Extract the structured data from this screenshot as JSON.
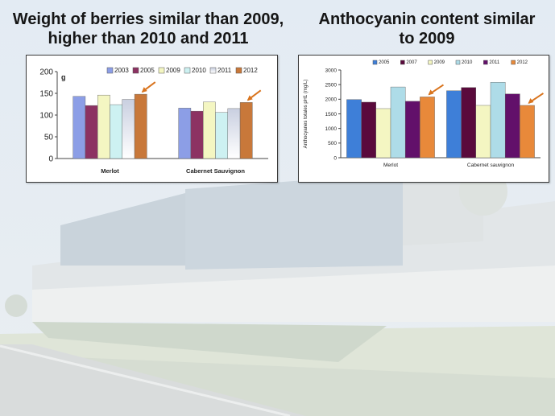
{
  "slide": {
    "left_title": [
      "Weight of berries similar than 2009,",
      "higher than 2010 and 2011"
    ],
    "right_title": [
      "Anthocyanin content similar",
      "to 2009"
    ]
  },
  "colors": {
    "2003": "#8c9ee6",
    "2005": "#8c3262",
    "2007": "#5a0a3c",
    "2009": "#f4f6c2",
    "2010": "#cdf1f2",
    "2011": "#62106a",
    "2012": "#c8783a",
    "2005_blue": "#3e7fd8",
    "2010_light": "#aedce8",
    "arrow": "#d9741e"
  },
  "chart_data": [
    {
      "type": "bar",
      "unit_label": "g",
      "categories": [
        "Merlot",
        "Cabernet Sauvignon"
      ],
      "series": [
        {
          "name": "2003",
          "values": [
            143,
            116
          ],
          "color": "#8c9ee6"
        },
        {
          "name": "2005",
          "values": [
            122,
            109
          ],
          "color": "#8c3262"
        },
        {
          "name": "2009",
          "values": [
            146,
            130
          ],
          "color": "#f4f6c2"
        },
        {
          "name": "2010",
          "values": [
            124,
            106
          ],
          "color": "#cdf1f2"
        },
        {
          "name": "2011",
          "values": [
            136,
            115
          ],
          "color": "#ffffff",
          "gradient": true
        },
        {
          "name": "2012",
          "values": [
            148,
            129
          ],
          "color": "#c8783a"
        }
      ],
      "ylim": [
        0,
        200
      ],
      "yticks": [
        0,
        50,
        100,
        150,
        200
      ],
      "grid": false,
      "legend": "top",
      "annotations": [
        "arrow pointing to Merlot 2012",
        "arrow pointing to Cabernet Sauvignon 2012"
      ]
    },
    {
      "type": "bar",
      "ylabel": "Anthocyanes totales pH1 (mg/L)",
      "categories": [
        "Merlot",
        "Cabernet sauvignon"
      ],
      "series": [
        {
          "name": "2005",
          "values": [
            1990,
            2290
          ],
          "color": "#3e7fd8"
        },
        {
          "name": "2007",
          "values": [
            1900,
            2400
          ],
          "color": "#5a0a3c"
        },
        {
          "name": "2009",
          "values": [
            1680,
            1790
          ],
          "color": "#f4f6c2"
        },
        {
          "name": "2010",
          "values": [
            2420,
            2580
          ],
          "color": "#aedce8"
        },
        {
          "name": "2011",
          "values": [
            1930,
            2180
          ],
          "color": "#62106a"
        },
        {
          "name": "2012",
          "values": [
            2080,
            1790
          ],
          "color": "#e8893a"
        }
      ],
      "ylim": [
        0,
        3000
      ],
      "yticks": [
        0,
        500,
        1000,
        1500,
        2000,
        2500,
        3000
      ],
      "grid": false,
      "legend": "top",
      "annotations": [
        "arrow pointing to Merlot 2012",
        "arrow pointing to Cabernet sauvignon 2012"
      ]
    }
  ]
}
